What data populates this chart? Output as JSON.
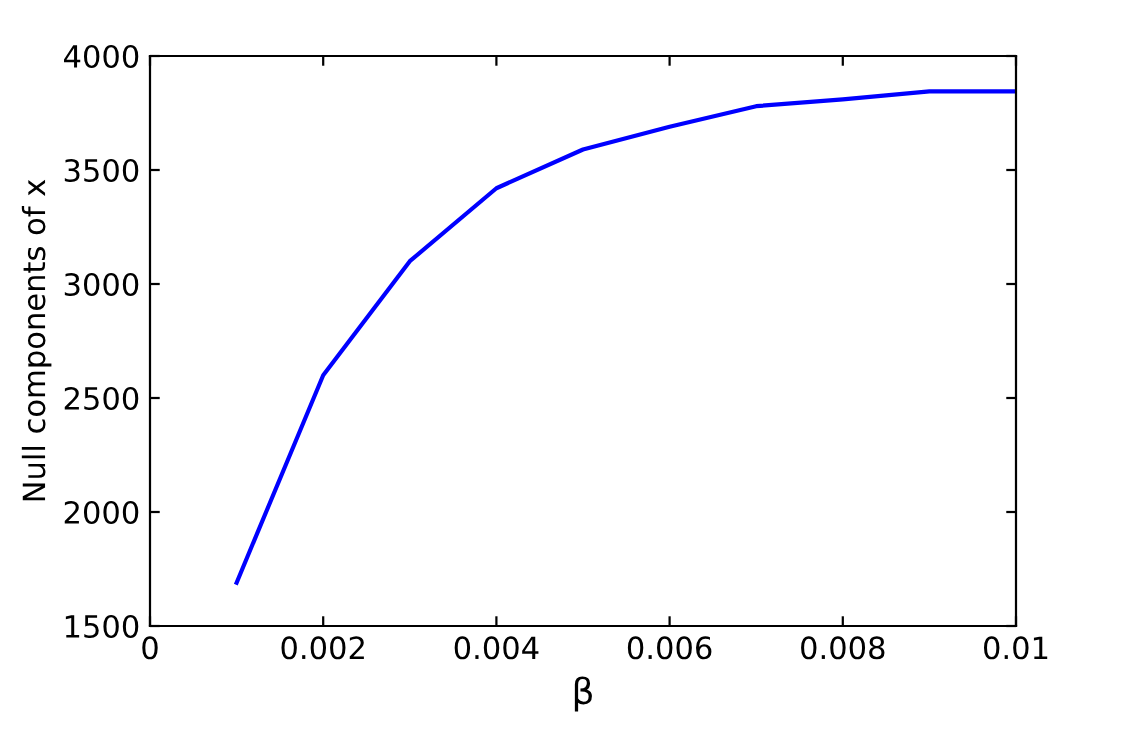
{
  "chart_data": {
    "type": "line",
    "xlabel": "β",
    "ylabel": "Null components of x",
    "x": [
      0.001,
      0.002,
      0.003,
      0.004,
      0.005,
      0.006,
      0.007,
      0.008,
      0.009,
      0.01
    ],
    "series": [
      {
        "color": "#0000ff",
        "values": [
          1690,
          2600,
          3100,
          3420,
          3590,
          3690,
          3780,
          3810,
          3845,
          3845
        ]
      }
    ],
    "xlim": [
      0,
      0.01
    ],
    "xticks": [
      0,
      0.002,
      0.004,
      0.006,
      0.008,
      0.01
    ],
    "ylim": [
      1500,
      4000
    ],
    "yticks": [
      1500,
      2000,
      2500,
      3000,
      3500,
      4000
    ],
    "grid": false,
    "legend": false,
    "line_style": "solid",
    "marker": "none"
  }
}
